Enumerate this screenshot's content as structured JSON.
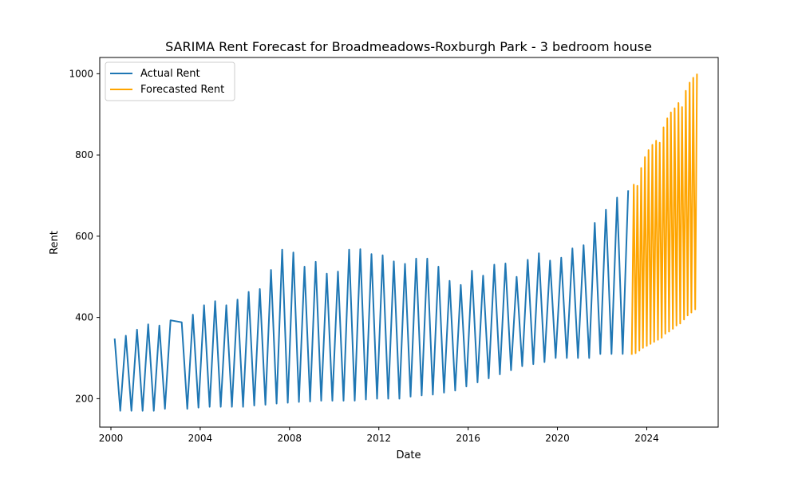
{
  "chart_data": {
    "type": "line",
    "title": "SARIMA Rent Forecast for Broadmeadows-Roxburgh Park - 3 bedroom house",
    "xlabel": "Date",
    "ylabel": "Rent",
    "xlim": [
      1999.5,
      2027.2
    ],
    "ylim": [
      130,
      1040
    ],
    "xticks": [
      2000,
      2004,
      2008,
      2012,
      2016,
      2020,
      2024
    ],
    "xtick_labels": [
      "2000",
      "2004",
      "2008",
      "2012",
      "2016",
      "2020",
      "2024"
    ],
    "yticks": [
      200,
      400,
      600,
      800,
      1000
    ],
    "ytick_labels": [
      "200",
      "400",
      "600",
      "800",
      "1000"
    ],
    "grid": false,
    "legend_position": "top-left",
    "series": [
      {
        "name": "Actual Rent",
        "color": "#1f77b4",
        "x": [
          2000.17,
          2000.42,
          2000.67,
          2000.92,
          2001.17,
          2001.42,
          2001.67,
          2001.92,
          2002.17,
          2002.42,
          2002.67,
          2003.17,
          2003.42,
          2003.67,
          2003.92,
          2004.17,
          2004.42,
          2004.67,
          2004.92,
          2005.17,
          2005.42,
          2005.67,
          2005.92,
          2006.17,
          2006.42,
          2006.67,
          2006.92,
          2007.17,
          2007.42,
          2007.67,
          2007.92,
          2008.17,
          2008.42,
          2008.67,
          2008.92,
          2009.17,
          2009.42,
          2009.67,
          2009.92,
          2010.17,
          2010.42,
          2010.67,
          2010.92,
          2011.17,
          2011.42,
          2011.67,
          2011.92,
          2012.17,
          2012.42,
          2012.67,
          2012.92,
          2013.17,
          2013.42,
          2013.67,
          2013.92,
          2014.17,
          2014.42,
          2014.67,
          2014.92,
          2015.17,
          2015.42,
          2015.67,
          2015.92,
          2016.17,
          2016.42,
          2016.67,
          2016.92,
          2017.17,
          2017.42,
          2017.67,
          2017.92,
          2018.17,
          2018.42,
          2018.67,
          2018.92,
          2019.17,
          2019.42,
          2019.67,
          2019.92,
          2020.17,
          2020.42,
          2020.67,
          2020.92,
          2021.17,
          2021.42,
          2021.67,
          2021.92,
          2022.17,
          2022.42,
          2022.67,
          2022.92,
          2023.17
        ],
        "values": [
          348,
          170,
          355,
          170,
          370,
          170,
          383,
          170,
          380,
          175,
          393,
          388,
          175,
          407,
          178,
          430,
          180,
          440,
          180,
          430,
          180,
          444,
          180,
          463,
          183,
          470,
          185,
          517,
          188,
          567,
          190,
          560,
          192,
          525,
          193,
          537,
          195,
          508,
          195,
          513,
          195,
          567,
          195,
          568,
          198,
          556,
          200,
          553,
          200,
          538,
          200,
          532,
          205,
          545,
          208,
          545,
          210,
          525,
          215,
          490,
          220,
          480,
          230,
          515,
          240,
          503,
          250,
          530,
          260,
          533,
          270,
          500,
          280,
          542,
          285,
          558,
          290,
          540,
          300,
          547,
          300,
          570,
          300,
          578,
          300,
          633,
          310,
          665,
          310,
          695,
          310,
          713
        ]
      },
      {
        "name": "Forecasted Rent",
        "color": "#ffa500",
        "x": [
          2023.33,
          2023.42,
          2023.5,
          2023.58,
          2023.67,
          2023.75,
          2023.83,
          2023.92,
          2024.0,
          2024.08,
          2024.17,
          2024.25,
          2024.33,
          2024.42,
          2024.5,
          2024.58,
          2024.67,
          2024.75,
          2024.83,
          2024.92,
          2025.0,
          2025.08,
          2025.17,
          2025.25,
          2025.33,
          2025.42,
          2025.5,
          2025.58,
          2025.67,
          2025.75,
          2025.83,
          2025.92,
          2026.0,
          2026.08,
          2026.17
        ],
        "values": [
          308,
          727,
          312,
          724,
          318,
          768,
          325,
          795,
          330,
          812,
          335,
          825,
          340,
          835,
          345,
          830,
          350,
          868,
          360,
          890,
          365,
          905,
          372,
          915,
          380,
          928,
          385,
          918,
          395,
          958,
          405,
          978,
          412,
          990,
          420
        ]
      }
    ],
    "forecast_tail": {
      "x": 2026.25,
      "value": 1000
    }
  }
}
